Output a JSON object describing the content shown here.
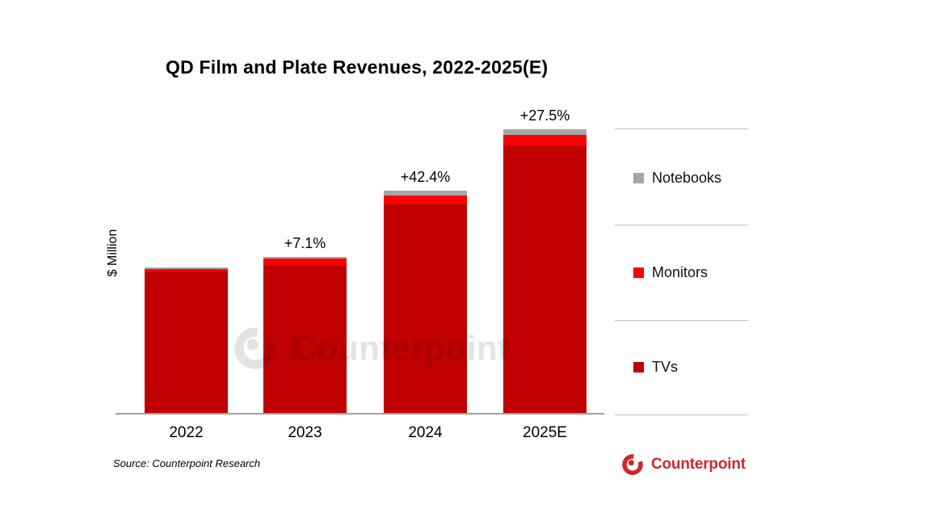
{
  "title": "QD Film and Plate Revenues, 2022-2025(E)",
  "watermark": {
    "text": "Counterpoint"
  },
  "footer": {
    "source": "Source: Counterpoint Research",
    "brand_name": "Counterpoint",
    "brand_color": "#D2262E"
  },
  "legend": {
    "items": [
      {
        "label": "Notebooks",
        "color": "#A6A6A6"
      },
      {
        "label": "Monitors",
        "color": "#FF0000"
      },
      {
        "label": "TVs",
        "color": "#C00000"
      }
    ]
  },
  "chart_data": {
    "type": "bar",
    "stacked": true,
    "title": "QD Film and Plate Revenues, 2022-2025(E)",
    "xlabel": "",
    "ylabel": "$ Million",
    "categories": [
      "2022",
      "2023",
      "2024",
      "2025E"
    ],
    "series": [
      {
        "name": "TVs",
        "color": "#C00000",
        "values": [
          97.2,
          101.6,
          143.1,
          183.4
        ]
      },
      {
        "name": "Monitors",
        "color": "#FF0000",
        "values": [
          1.9,
          4.4,
          6.1,
          7.2
        ]
      },
      {
        "name": "Notebooks",
        "color": "#A6A6A6",
        "values": [
          0.9,
          1.1,
          3.3,
          3.9
        ]
      }
    ],
    "totals": [
      100,
      107.1,
      152.5,
      194.5
    ],
    "yoy_growth_labels": [
      null,
      "+7.1%",
      "+42.4%",
      "+27.5%"
    ],
    "value_basis": "relative index (2022 total = 100); chart displays no numeric y-axis ticks",
    "ylim": [
      0,
      215
    ],
    "grid": false,
    "legend_position": "right",
    "legend_order_top_to_bottom": [
      "Notebooks",
      "Monitors",
      "TVs"
    ]
  }
}
